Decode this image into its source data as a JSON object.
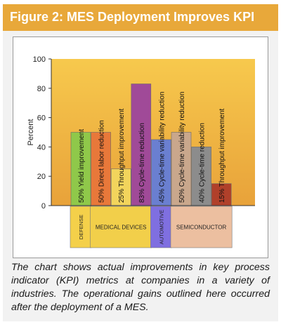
{
  "figure": {
    "title": "Figure 2: MES Deployment Improves KPI",
    "caption": "The chart shows actual improvements in key process indicator (KPI) metrics at companies in a variety of industries. The operational gains outlined here occurred after the deployment of a MES."
  },
  "colors": {
    "header": "#e8a83a",
    "plot_top": "#f7c94d",
    "plot_bottom": "#e8a23a",
    "defense": "#f4d04a",
    "medical": "#f2cf4a",
    "automotive": "#7f6fe0",
    "semiconductor": "#ecbfa0"
  },
  "chart_data": {
    "type": "bar",
    "ylabel": "Percent",
    "ylim": [
      0,
      100
    ],
    "yticks": [
      0,
      20,
      40,
      60,
      80,
      100
    ],
    "bars": [
      {
        "label": "50% Yield improvement",
        "value": 50,
        "industry": "DEFENSE",
        "color": "#8fc84a"
      },
      {
        "label": "50% Direct labor reduction",
        "value": 50,
        "industry": "MEDICAL DEVICES",
        "color": "#e8783a"
      },
      {
        "label": "25% Throughput improvement",
        "value": 25,
        "industry": "MEDICAL DEVICES",
        "color": "#f2d45c"
      },
      {
        "label": "83% Cycle-time reduction",
        "value": 83,
        "industry": "MEDICAL DEVICES",
        "color": "#a04a98"
      },
      {
        "label": "45% Cycle-time variability reduction",
        "value": 45,
        "industry": "AUTOMOTIVE",
        "color": "#6a7fd0"
      },
      {
        "label": "50% Cycle-time variability reduction",
        "value": 50,
        "industry": "SEMICONDUCTOR",
        "color": "#c9a78c"
      },
      {
        "label": "40% Cycle-time reduction",
        "value": 40,
        "industry": "SEMICONDUCTOR",
        "color": "#8c8c8c"
      },
      {
        "label": "15% Throughput improvement",
        "value": 15,
        "industry": "SEMICONDUCTOR",
        "color": "#b0402a"
      }
    ],
    "groups": [
      {
        "label": "DEFENSE",
        "count": 1
      },
      {
        "label": "MEDICAL DEVICES",
        "count": 3
      },
      {
        "label": "AUTOMOTIVE",
        "count": 1
      },
      {
        "label": "SEMICONDUCTOR",
        "count": 3
      }
    ]
  }
}
